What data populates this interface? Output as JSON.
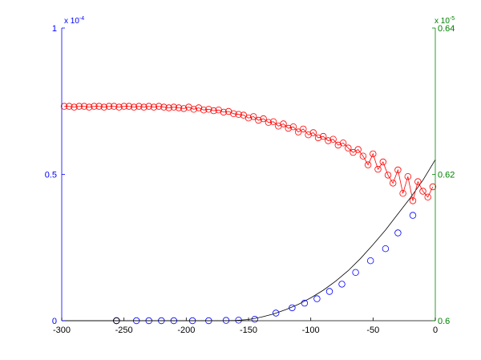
{
  "chart_data": {
    "type": "line",
    "title": "",
    "xlabel": "",
    "ylabel_left": "",
    "ylabel_right": "",
    "xlim": [
      -300,
      0
    ],
    "x_ticks": [
      "-300",
      "-250",
      "-200",
      "-150",
      "-100",
      "-50",
      "0"
    ],
    "x_tick_values": [
      -300,
      -250,
      -200,
      -150,
      -100,
      -50,
      0
    ],
    "left_axis": {
      "color": "#0000ff",
      "ylim": [
        0,
        1
      ],
      "tick_values": [
        0,
        0.5,
        1
      ],
      "ticks": [
        "0",
        "0.5",
        "1"
      ],
      "multiplier": {
        "base": "x 10",
        "exponent": "-4"
      }
    },
    "right_axis": {
      "color": "#008000",
      "ylim": [
        0.6,
        0.64
      ],
      "tick_values": [
        0.6,
        0.62,
        0.64
      ],
      "ticks": [
        "0.6",
        "0.62",
        "0.64"
      ],
      "multiplier": {
        "base": "x 10",
        "exponent": "-5"
      }
    },
    "grid": false,
    "legend": "none",
    "series": [
      {
        "axis": "left",
        "style": "smooth-line",
        "line_color": "#000000",
        "x": [
          -300,
          -280,
          -260,
          -240,
          -220,
          -200,
          -180,
          -170,
          -160,
          -150,
          -140,
          -130,
          -120,
          -110,
          -100,
          -90,
          -80,
          -70,
          -60,
          -50,
          -40,
          -30,
          -20,
          -10,
          0
        ],
        "y": [
          0,
          0,
          0,
          0,
          0,
          0,
          0,
          0,
          0.001,
          0.004,
          0.012,
          0.023,
          0.038,
          0.056,
          0.078,
          0.104,
          0.135,
          0.171,
          0.213,
          0.26,
          0.31,
          0.365,
          0.42,
          0.48,
          0.55
        ]
      },
      {
        "axis": "left",
        "style": "markers",
        "marker": "circle",
        "marker_color": "#0000ff",
        "x": [
          -256,
          -240,
          -230,
          -220,
          -210,
          -195,
          -182,
          -168,
          -158,
          -145,
          -128,
          -115,
          -105,
          -95,
          -85,
          -75,
          -64,
          -52,
          -40,
          -30,
          -18
        ],
        "y": [
          0,
          0,
          0,
          0,
          0,
          0,
          0,
          0.001,
          0.002,
          0.005,
          0.026,
          0.044,
          0.06,
          0.075,
          0.1,
          0.125,
          0.165,
          0.205,
          0.246,
          0.3,
          0.36
        ]
      },
      {
        "axis": "left",
        "style": "markers",
        "marker": "circle",
        "marker_color": "#000000",
        "x": [
          -256
        ],
        "y": [
          0
        ]
      },
      {
        "axis": "right",
        "style": "line-markers",
        "line_color": "#ff0000",
        "marker": "circle",
        "marker_color": "#ff0000",
        "x": [
          -298,
          -294,
          -290,
          -286,
          -282,
          -278,
          -274,
          -270,
          -266,
          -262,
          -258,
          -254,
          -250,
          -246,
          -242,
          -238,
          -234,
          -230,
          -226,
          -222,
          -218,
          -214,
          -210,
          -206,
          -202,
          -198,
          -194,
          -190,
          -186,
          -182,
          -178,
          -174,
          -170,
          -166,
          -162,
          -158,
          -154,
          -150,
          -146,
          -142,
          -138,
          -134,
          -130,
          -126,
          -122,
          -118,
          -114,
          -110,
          -106,
          -102,
          -98,
          -94,
          -90,
          -86,
          -82,
          -78,
          -74,
          -70,
          -66,
          -62,
          -58,
          -54,
          -50,
          -46,
          -42,
          -38,
          -34,
          -30,
          -26,
          -22,
          -18,
          -14,
          -10,
          -6,
          -2
        ],
        "y": [
          0.6293,
          0.6293,
          0.6292,
          0.6293,
          0.6293,
          0.6292,
          0.6293,
          0.6293,
          0.6292,
          0.6293,
          0.6293,
          0.6292,
          0.6293,
          0.6293,
          0.6292,
          0.6293,
          0.6292,
          0.6293,
          0.6292,
          0.6293,
          0.6292,
          0.6291,
          0.6292,
          0.6291,
          0.629,
          0.6292,
          0.6289,
          0.6291,
          0.6288,
          0.6289,
          0.6287,
          0.6288,
          0.6285,
          0.6286,
          0.6283,
          0.6282,
          0.6281,
          0.6277,
          0.6279,
          0.6274,
          0.6276,
          0.6271,
          0.6272,
          0.6266,
          0.6269,
          0.6263,
          0.6265,
          0.6258,
          0.6262,
          0.6254,
          0.6257,
          0.625,
          0.6252,
          0.6246,
          0.6248,
          0.624,
          0.6243,
          0.6236,
          0.623,
          0.6234,
          0.6225,
          0.6213,
          0.6228,
          0.6207,
          0.6217,
          0.6199,
          0.6188,
          0.6206,
          0.6174,
          0.6197,
          0.6164,
          0.619,
          0.6177,
          0.6169,
          0.6183
        ]
      }
    ]
  }
}
